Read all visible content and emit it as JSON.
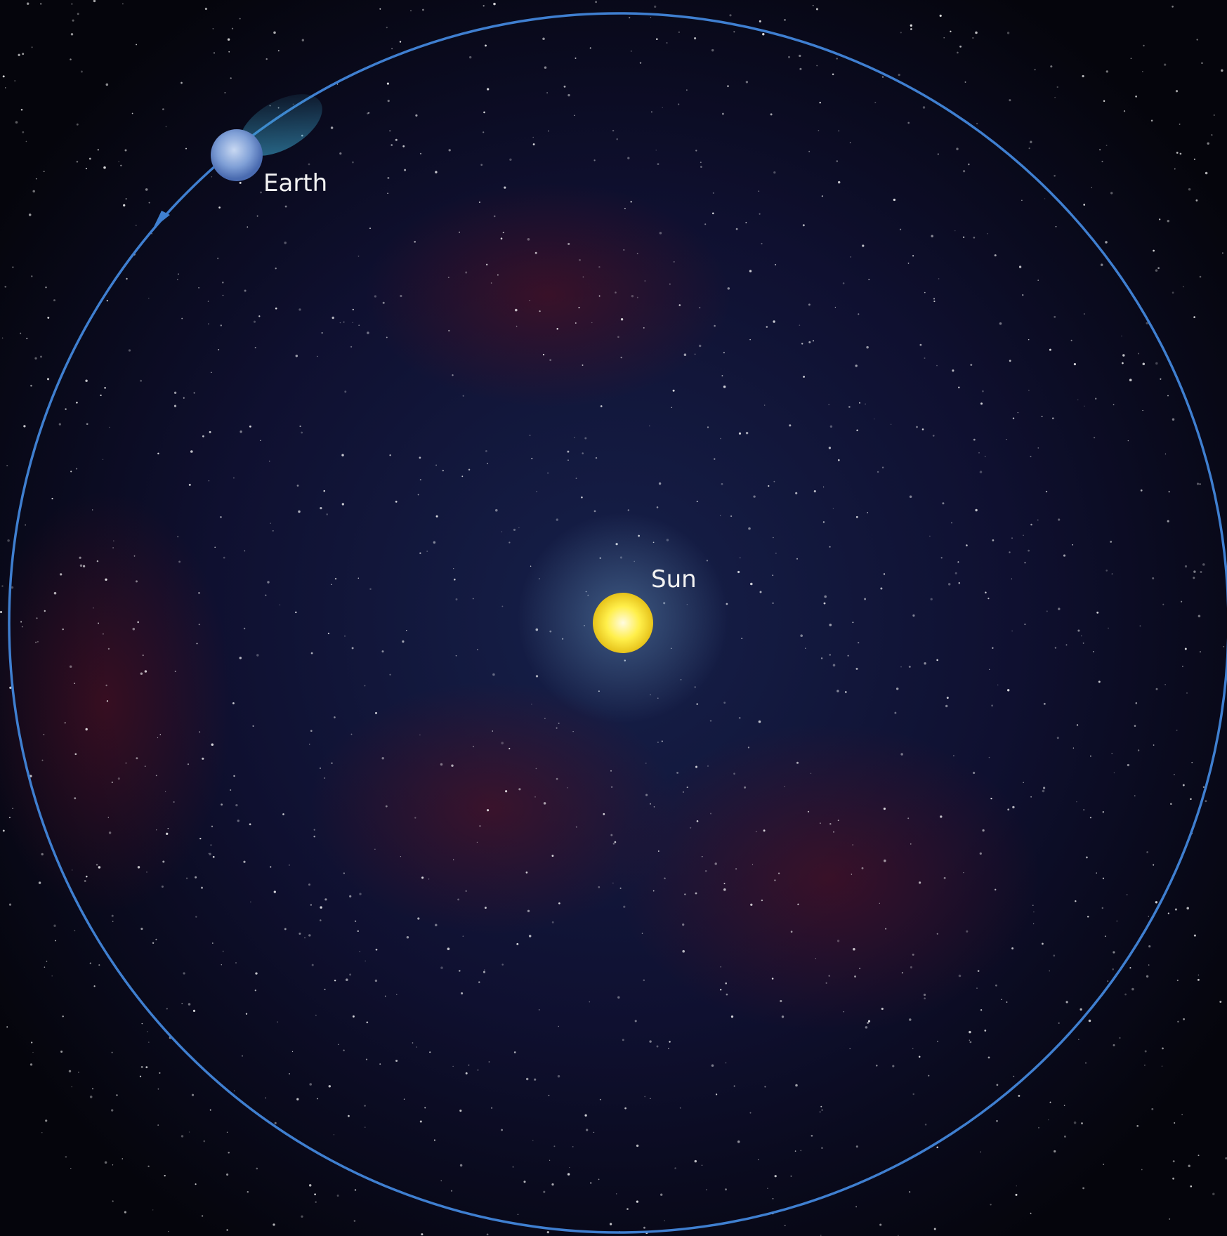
{
  "nodes": [
    {
      "label": "Earth"
    },
    {
      "label": "Sun"
    }
  ]
}
